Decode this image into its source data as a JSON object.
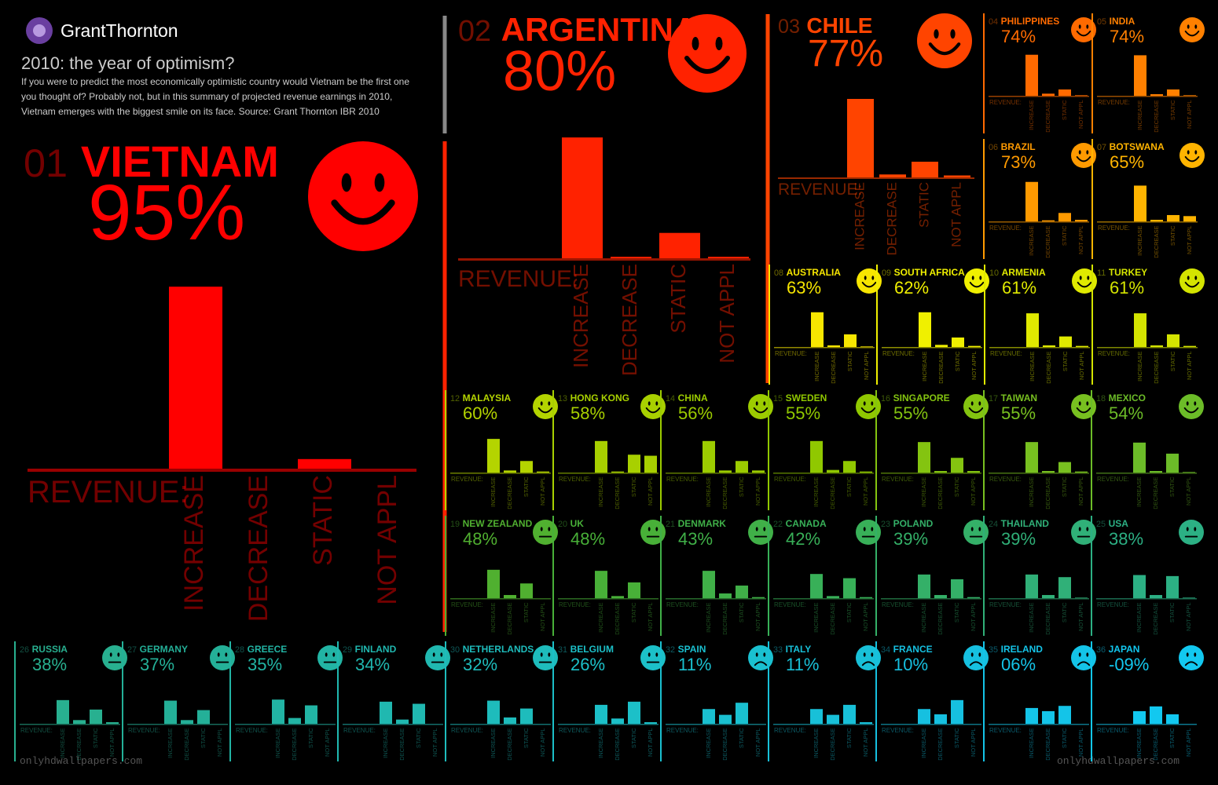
{
  "header": {
    "logo": "GrantThornton",
    "title": "2010: the year of optimism?",
    "description": [
      "If you were to predict the most economically optimistic country would Vietnam be the first one",
      "you thought of? Probably not, but in this summary of projected revenue earnings in 2010,",
      "Vietnam emerges with the biggest smile on its face. Source: Grant Thornton IBR 2010"
    ]
  },
  "watermark": "onlyhdwallpapers.com",
  "chart_data": [
    {
      "type": "bar",
      "rank": "01",
      "title": "VIETNAM",
      "subtitle": "95%",
      "face": "smile",
      "color": "#ff0000",
      "x_label": "REVENUE:",
      "categories": [
        "INCREASE",
        "DECREASE",
        "STATIC",
        "NOT APPL"
      ],
      "values": [
        95,
        0,
        5,
        0
      ]
    },
    {
      "type": "bar",
      "rank": "02",
      "title": "ARGENTINA",
      "subtitle": "80%",
      "face": "smile",
      "color": "#ff2200",
      "x_label": "REVENUE:",
      "categories": [
        "INCREASE",
        "DECREASE",
        "STATIC",
        "NOT APPL"
      ],
      "values": [
        81,
        1,
        17,
        1
      ]
    },
    {
      "type": "bar",
      "rank": "03",
      "title": "CHILE",
      "subtitle": "77%",
      "face": "smile",
      "color": "#ff4400",
      "x_label": "REVENUE:",
      "categories": [
        "INCREASE",
        "DECREASE",
        "STATIC",
        "NOT APPL"
      ],
      "values": [
        80,
        3,
        16,
        2
      ]
    },
    {
      "type": "bar",
      "rank": "04",
      "title": "PHILIPPINES",
      "subtitle": "74%",
      "face": "smile",
      "color": "#ff6a00",
      "x_label": "REVENUE:",
      "categories": [
        "INCREASE",
        "DECREASE",
        "STATIC",
        "NOT APPL"
      ],
      "values": [
        78,
        4,
        12,
        1
      ]
    },
    {
      "type": "bar",
      "rank": "05",
      "title": "INDIA",
      "subtitle": "74%",
      "face": "smile",
      "color": "#ff8000",
      "x_label": "REVENUE:",
      "categories": [
        "INCREASE",
        "DECREASE",
        "STATIC",
        "NOT APPL"
      ],
      "values": [
        77,
        3,
        12,
        1
      ]
    },
    {
      "type": "bar",
      "rank": "06",
      "title": "BRAZIL",
      "subtitle": "73%",
      "face": "smile",
      "color": "#ff9a00",
      "x_label": "REVENUE:",
      "categories": [
        "INCREASE",
        "DECREASE",
        "STATIC",
        "NOT APPL"
      ],
      "values": [
        75,
        2,
        16,
        3
      ]
    },
    {
      "type": "bar",
      "rank": "07",
      "title": "BOTSWANA",
      "subtitle": "65%",
      "face": "smile",
      "color": "#ffb400",
      "x_label": "REVENUE:",
      "categories": [
        "INCREASE",
        "DECREASE",
        "STATIC",
        "NOT APPL"
      ],
      "values": [
        68,
        3,
        12,
        10
      ]
    },
    {
      "type": "bar",
      "rank": "08",
      "title": "AUSTRALIA",
      "subtitle": "63%",
      "face": "smile",
      "color": "#f7e600",
      "x_label": "REVENUE:",
      "categories": [
        "INCREASE",
        "DECREASE",
        "STATIC",
        "NOT APPL"
      ],
      "values": [
        66,
        3,
        24,
        1
      ]
    },
    {
      "type": "bar",
      "rank": "09",
      "title": "SOUTH AFRICA",
      "subtitle": "62%",
      "face": "smile",
      "color": "#f0f000",
      "x_label": "REVENUE:",
      "categories": [
        "INCREASE",
        "DECREASE",
        "STATIC",
        "NOT APPL"
      ],
      "values": [
        66,
        4,
        18,
        2
      ]
    },
    {
      "type": "bar",
      "rank": "10",
      "title": "ARMENIA",
      "subtitle": "61%",
      "face": "smile",
      "color": "#e0ea00",
      "x_label": "REVENUE:",
      "categories": [
        "INCREASE",
        "DECREASE",
        "STATIC",
        "NOT APPL"
      ],
      "values": [
        64,
        3,
        20,
        2
      ]
    },
    {
      "type": "bar",
      "rank": "11",
      "title": "TURKEY",
      "subtitle": "61%",
      "face": "smile",
      "color": "#d4e400",
      "x_label": "REVENUE:",
      "categories": [
        "INCREASE",
        "DECREASE",
        "STATIC",
        "NOT APPL"
      ],
      "values": [
        64,
        3,
        24,
        2
      ]
    },
    {
      "type": "bar",
      "rank": "12",
      "title": "MALAYSIA",
      "subtitle": "60%",
      "face": "smile",
      "color": "#b4d400",
      "x_label": "REVENUE:",
      "categories": [
        "INCREASE",
        "DECREASE",
        "STATIC",
        "NOT APPL"
      ],
      "values": [
        64,
        4,
        22,
        2
      ]
    },
    {
      "type": "bar",
      "rank": "13",
      "title": "HONG KONG",
      "subtitle": "58%",
      "face": "smile",
      "color": "#a8d000",
      "x_label": "REVENUE:",
      "categories": [
        "INCREASE",
        "DECREASE",
        "STATIC",
        "NOT APPL"
      ],
      "values": [
        60,
        2,
        34,
        32
      ]
    },
    {
      "type": "bar",
      "rank": "14",
      "title": "CHINA",
      "subtitle": "56%",
      "face": "smile",
      "color": "#9ccc00",
      "x_label": "REVENUE:",
      "categories": [
        "INCREASE",
        "DECREASE",
        "STATIC",
        "NOT APPL"
      ],
      "values": [
        60,
        4,
        22,
        4
      ]
    },
    {
      "type": "bar",
      "rank": "15",
      "title": "SWEDEN",
      "subtitle": "55%",
      "face": "smile",
      "color": "#90c800",
      "x_label": "REVENUE:",
      "categories": [
        "INCREASE",
        "DECREASE",
        "STATIC",
        "NOT APPL"
      ],
      "values": [
        60,
        5,
        22,
        2
      ]
    },
    {
      "type": "bar",
      "rank": "16",
      "title": "SINGAPORE",
      "subtitle": "55%",
      "face": "smile",
      "color": "#84c410",
      "x_label": "REVENUE:",
      "categories": [
        "INCREASE",
        "DECREASE",
        "STATIC",
        "NOT APPL"
      ],
      "values": [
        58,
        3,
        28,
        3
      ]
    },
    {
      "type": "bar",
      "rank": "17",
      "title": "TAIWAN",
      "subtitle": "55%",
      "face": "smile",
      "color": "#78c020",
      "x_label": "REVENUE:",
      "categories": [
        "INCREASE",
        "DECREASE",
        "STATIC",
        "NOT APPL"
      ],
      "values": [
        58,
        3,
        20,
        2
      ]
    },
    {
      "type": "bar",
      "rank": "18",
      "title": "MEXICO",
      "subtitle": "54%",
      "face": "smile",
      "color": "#6cbc28",
      "x_label": "REVENUE:",
      "categories": [
        "INCREASE",
        "DECREASE",
        "STATIC",
        "NOT APPL"
      ],
      "values": [
        57,
        3,
        36,
        1
      ]
    },
    {
      "type": "bar",
      "rank": "19",
      "title": "NEW ZEALAND",
      "subtitle": "48%",
      "face": "neutral",
      "color": "#50b030",
      "x_label": "REVENUE:",
      "categories": [
        "INCREASE",
        "DECREASE",
        "STATIC",
        "NOT APPL"
      ],
      "values": [
        54,
        6,
        28,
        0
      ]
    },
    {
      "type": "bar",
      "rank": "20",
      "title": "UK",
      "subtitle": "48%",
      "face": "neutral",
      "color": "#48b038",
      "x_label": "REVENUE:",
      "categories": [
        "INCREASE",
        "DECREASE",
        "STATIC",
        "NOT APPL"
      ],
      "values": [
        52,
        4,
        30,
        0
      ]
    },
    {
      "type": "bar",
      "rank": "21",
      "title": "DENMARK",
      "subtitle": "43%",
      "face": "neutral",
      "color": "#40b048",
      "x_label": "REVENUE:",
      "categories": [
        "INCREASE",
        "DECREASE",
        "STATIC",
        "NOT APPL"
      ],
      "values": [
        52,
        9,
        24,
        2
      ]
    },
    {
      "type": "bar",
      "rank": "22",
      "title": "CANADA",
      "subtitle": "42%",
      "face": "neutral",
      "color": "#38b058",
      "x_label": "REVENUE:",
      "categories": [
        "INCREASE",
        "DECREASE",
        "STATIC",
        "NOT APPL"
      ],
      "values": [
        46,
        4,
        38,
        2
      ]
    },
    {
      "type": "bar",
      "rank": "23",
      "title": "POLAND",
      "subtitle": "39%",
      "face": "neutral",
      "color": "#34b068",
      "x_label": "REVENUE:",
      "categories": [
        "INCREASE",
        "DECREASE",
        "STATIC",
        "NOT APPL"
      ],
      "values": [
        45,
        6,
        36,
        2
      ]
    },
    {
      "type": "bar",
      "rank": "24",
      "title": "THAILAND",
      "subtitle": "39%",
      "face": "neutral",
      "color": "#30b078",
      "x_label": "REVENUE:",
      "categories": [
        "INCREASE",
        "DECREASE",
        "STATIC",
        "NOT APPL"
      ],
      "values": [
        45,
        6,
        40,
        1
      ]
    },
    {
      "type": "bar",
      "rank": "25",
      "title": "USA",
      "subtitle": "38%",
      "face": "neutral",
      "color": "#2cb084",
      "x_label": "REVENUE:",
      "categories": [
        "INCREASE",
        "DECREASE",
        "STATIC",
        "NOT APPL"
      ],
      "values": [
        44,
        6,
        42,
        1
      ]
    },
    {
      "type": "bar",
      "rank": "26",
      "title": "RUSSIA",
      "subtitle": "38%",
      "face": "neutral",
      "color": "#28b090",
      "x_label": "REVENUE:",
      "categories": [
        "INCREASE",
        "DECREASE",
        "STATIC",
        "NOT APPL"
      ],
      "values": [
        45,
        7,
        27,
        3
      ]
    },
    {
      "type": "bar",
      "rank": "27",
      "title": "GERMANY",
      "subtitle": "37%",
      "face": "neutral",
      "color": "#24b098",
      "x_label": "REVENUE:",
      "categories": [
        "INCREASE",
        "DECREASE",
        "STATIC",
        "NOT APPL"
      ],
      "values": [
        44,
        7,
        26,
        0
      ]
    },
    {
      "type": "bar",
      "rank": "28",
      "title": "GREECE",
      "subtitle": "35%",
      "face": "neutral",
      "color": "#22b4a4",
      "x_label": "REVENUE:",
      "categories": [
        "INCREASE",
        "DECREASE",
        "STATIC",
        "NOT APPL"
      ],
      "values": [
        46,
        11,
        35,
        0
      ]
    },
    {
      "type": "bar",
      "rank": "29",
      "title": "FINLAND",
      "subtitle": "34%",
      "face": "neutral",
      "color": "#20b8b0",
      "x_label": "REVENUE:",
      "categories": [
        "INCREASE",
        "DECREASE",
        "STATIC",
        "NOT APPL"
      ],
      "values": [
        42,
        8,
        38,
        0
      ]
    },
    {
      "type": "bar",
      "rank": "30",
      "title": "NETHERLANDS",
      "subtitle": "32%",
      "face": "neutral",
      "color": "#1ebcbc",
      "x_label": "REVENUE:",
      "categories": [
        "INCREASE",
        "DECREASE",
        "STATIC",
        "NOT APPL"
      ],
      "values": [
        44,
        12,
        29,
        0
      ]
    },
    {
      "type": "bar",
      "rank": "31",
      "title": "BELGIUM",
      "subtitle": "26%",
      "face": "neutral",
      "color": "#1cc0c8",
      "x_label": "REVENUE:",
      "categories": [
        "INCREASE",
        "DECREASE",
        "STATIC",
        "NOT APPL"
      ],
      "values": [
        36,
        10,
        42,
        3
      ]
    },
    {
      "type": "bar",
      "rank": "32",
      "title": "SPAIN",
      "subtitle": "11%",
      "face": "frown",
      "color": "#1ac0d0",
      "x_label": "REVENUE:",
      "categories": [
        "INCREASE",
        "DECREASE",
        "STATIC",
        "NOT APPL"
      ],
      "values": [
        28,
        17,
        40,
        0
      ]
    },
    {
      "type": "bar",
      "rank": "33",
      "title": "ITALY",
      "subtitle": "11%",
      "face": "frown",
      "color": "#18c0d8",
      "x_label": "REVENUE:",
      "categories": [
        "INCREASE",
        "DECREASE",
        "STATIC",
        "NOT APPL"
      ],
      "values": [
        28,
        17,
        36,
        3
      ]
    },
    {
      "type": "bar",
      "rank": "34",
      "title": "FRANCE",
      "subtitle": "10%",
      "face": "frown",
      "color": "#16c0e0",
      "x_label": "REVENUE:",
      "categories": [
        "INCREASE",
        "DECREASE",
        "STATIC",
        "NOT APPL"
      ],
      "values": [
        28,
        18,
        45,
        0
      ]
    },
    {
      "type": "bar",
      "rank": "35",
      "title": "IRELAND",
      "subtitle": "06%",
      "face": "frown",
      "color": "#14c4e8",
      "x_label": "REVENUE:",
      "categories": [
        "INCREASE",
        "DECREASE",
        "STATIC",
        "NOT APPL"
      ],
      "values": [
        30,
        24,
        34,
        0
      ]
    },
    {
      "type": "bar",
      "rank": "36",
      "title": "JAPAN",
      "subtitle": "-09%",
      "face": "frown",
      "color": "#12c8f0",
      "x_label": "REVENUE:",
      "categories": [
        "INCREASE",
        "DECREASE",
        "STATIC",
        "NOT APPL"
      ],
      "values": [
        24,
        33,
        18,
        0
      ]
    }
  ]
}
